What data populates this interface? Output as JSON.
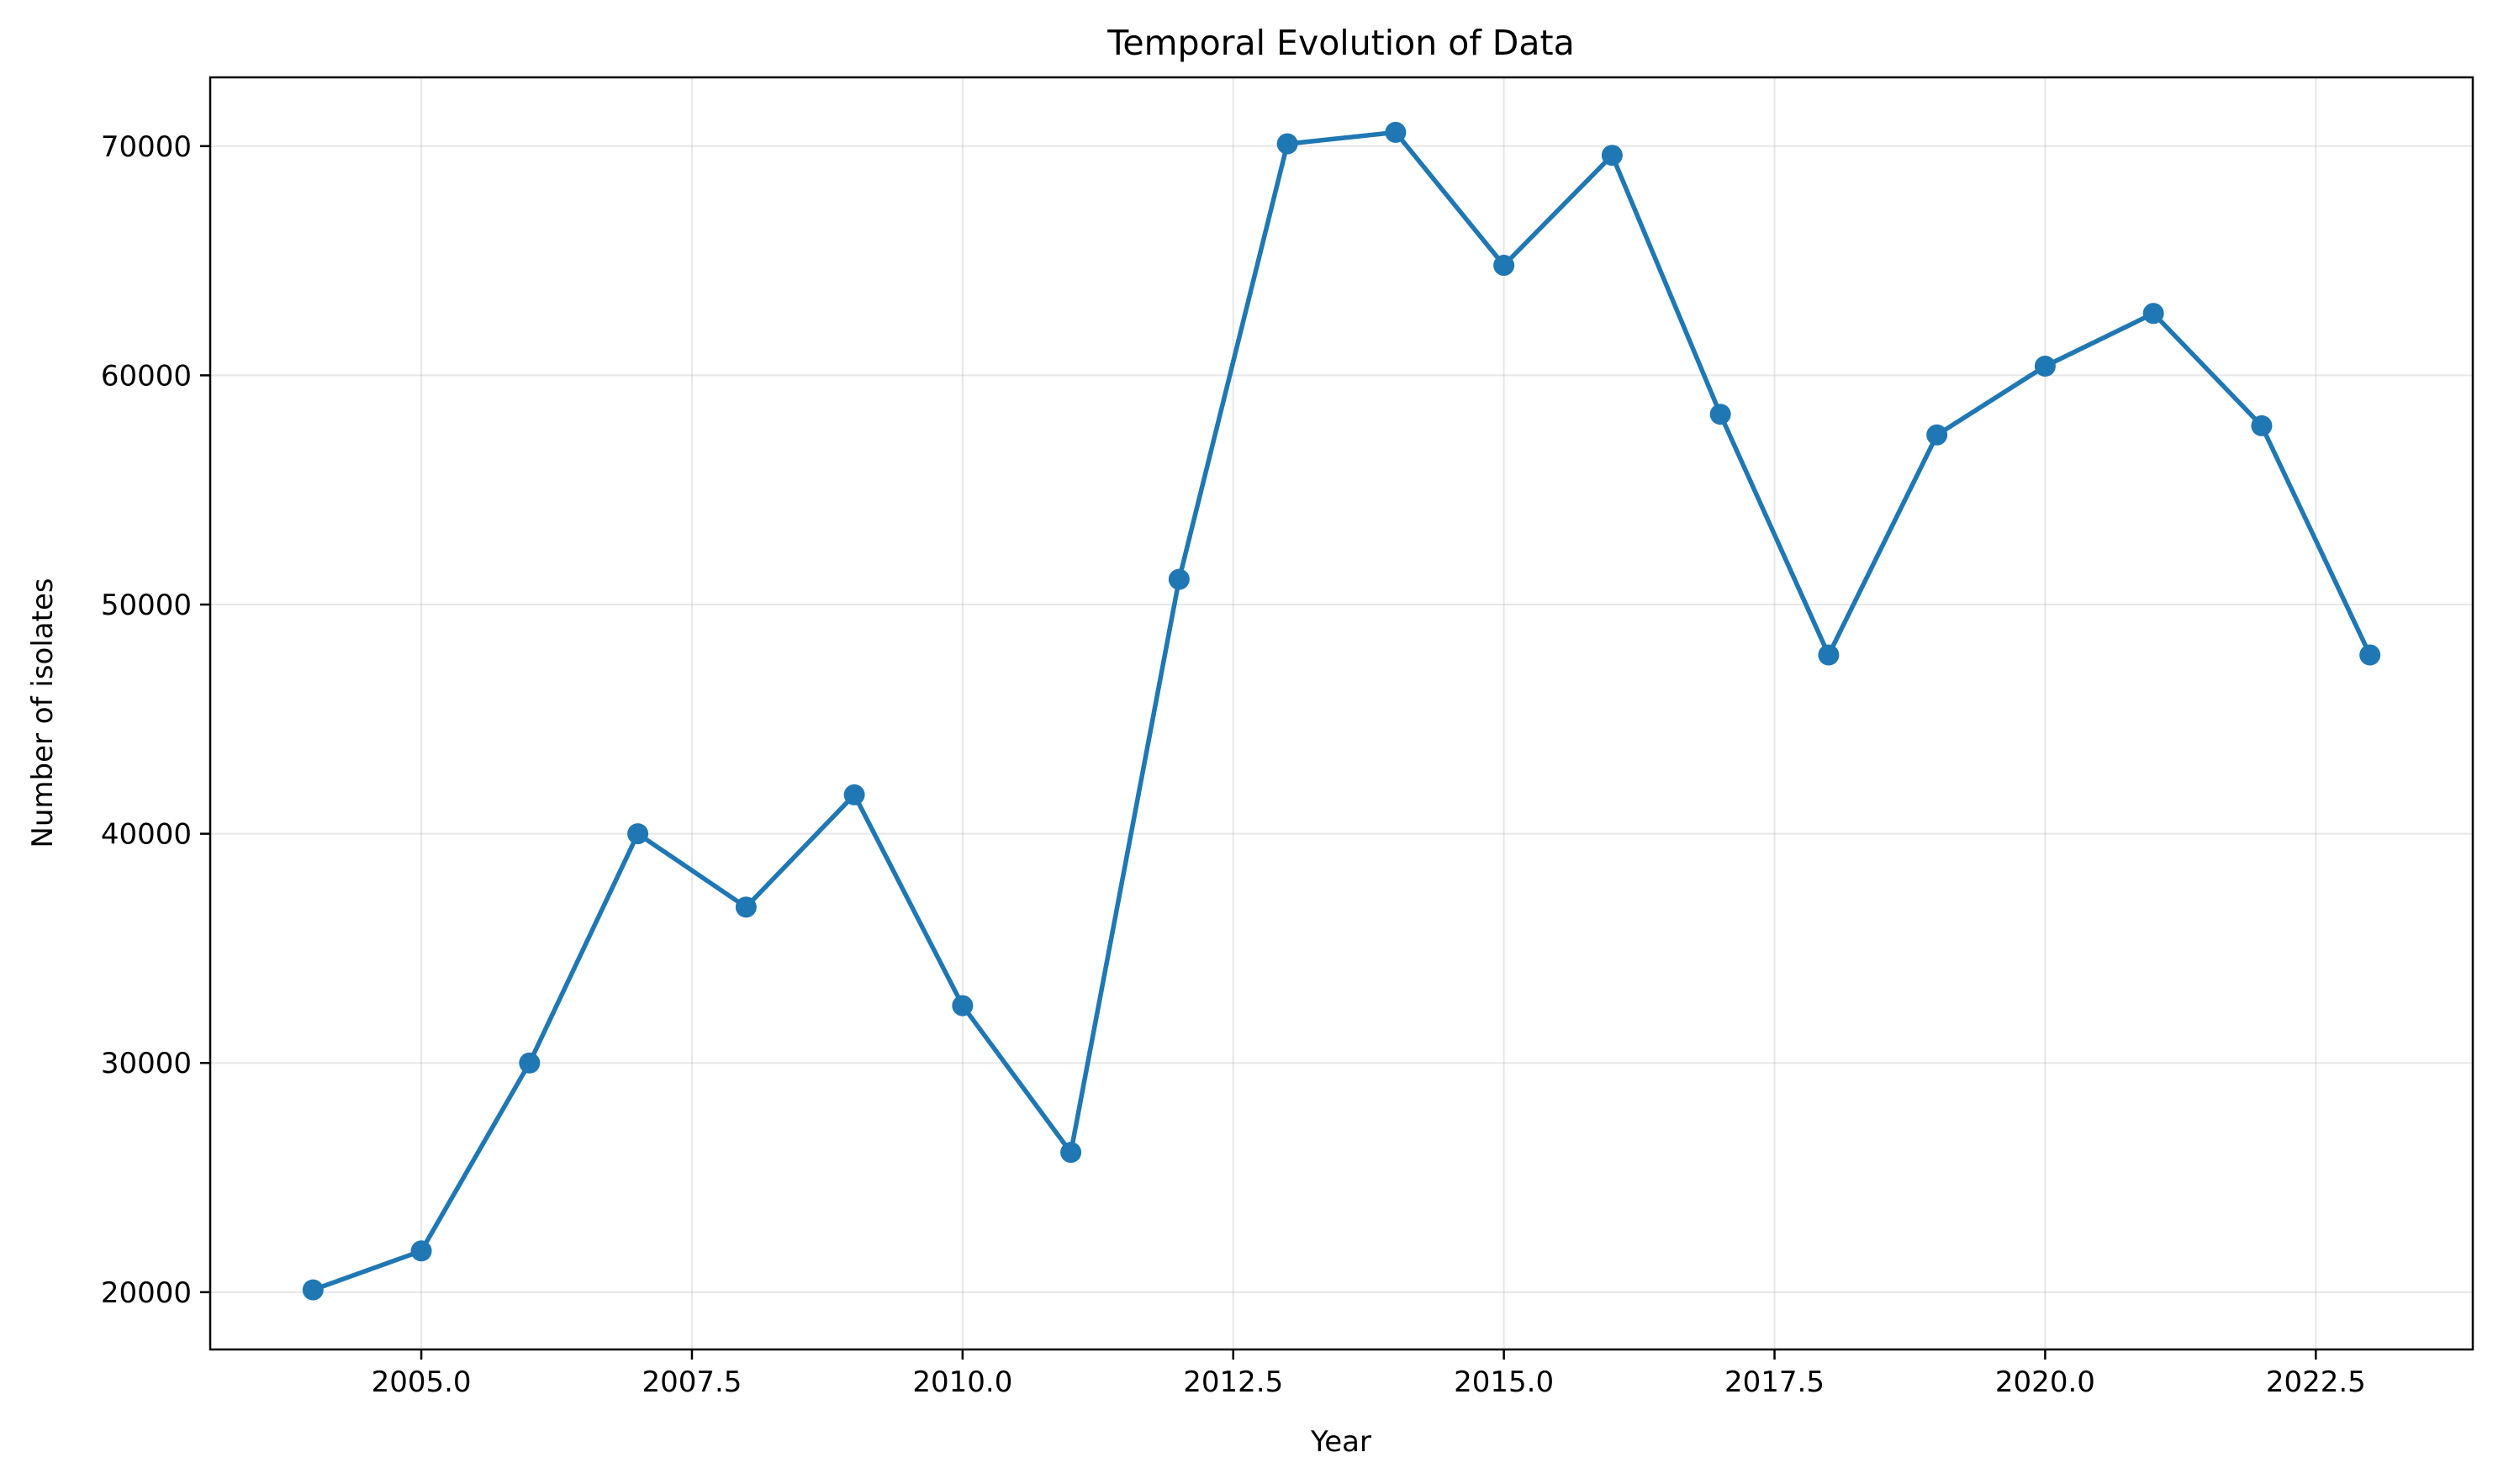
{
  "chart_data": {
    "type": "line",
    "title": "Temporal Evolution of Data",
    "xlabel": "Year",
    "ylabel": "Number of isolates",
    "xlim": [
      2003.05,
      2023.95
    ],
    "ylim": [
      17500,
      73000
    ],
    "xticks": [
      2005.0,
      2007.5,
      2010.0,
      2012.5,
      2015.0,
      2017.5,
      2020.0,
      2022.5
    ],
    "xtick_labels": [
      "2005.0",
      "2007.5",
      "2010.0",
      "2012.5",
      "2015.0",
      "2017.5",
      "2020.0",
      "2022.5"
    ],
    "yticks": [
      20000,
      30000,
      40000,
      50000,
      60000,
      70000
    ],
    "ytick_labels": [
      "20000",
      "30000",
      "40000",
      "50000",
      "60000",
      "70000"
    ],
    "grid": true,
    "legend": "none",
    "color": "#1f77b4",
    "series": [
      {
        "x": [
          2004,
          2005,
          2006,
          2007,
          2008,
          2009,
          2010,
          2011,
          2012,
          2013,
          2014,
          2015,
          2016,
          2017,
          2018,
          2019,
          2020,
          2021,
          2022,
          2023
        ],
        "values": [
          20100,
          21800,
          30000,
          40000,
          36800,
          41700,
          32500,
          26100,
          51100,
          70100,
          70600,
          64800,
          69600,
          58300,
          47800,
          57400,
          60400,
          62700,
          57800,
          47800
        ]
      }
    ]
  }
}
